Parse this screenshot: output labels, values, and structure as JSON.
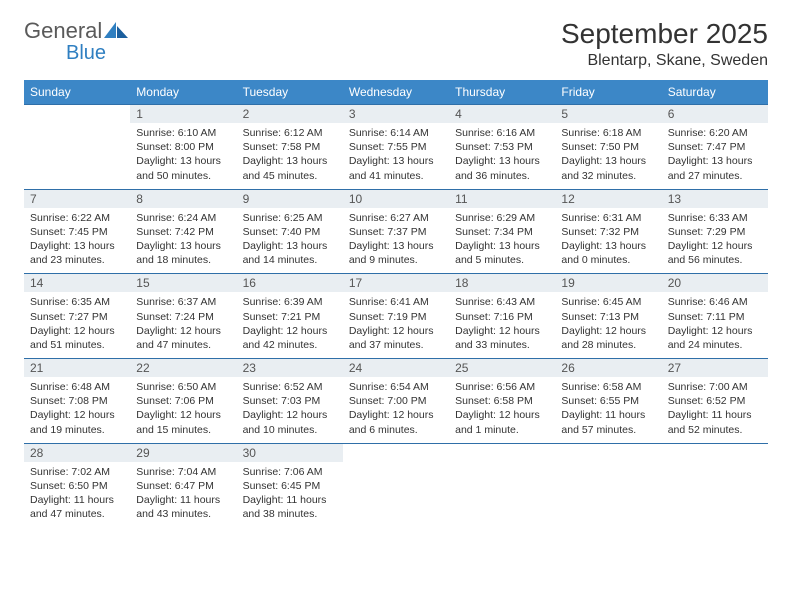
{
  "logo": {
    "word1": "General",
    "word2": "Blue"
  },
  "header": {
    "title": "September 2025",
    "location": "Blentarp, Skane, Sweden"
  },
  "colors": {
    "header_bg": "#3c87c7",
    "header_text": "#ffffff",
    "daynum_bg": "#e9eef2",
    "daynum_text": "#555555",
    "rule": "#2f6fa8",
    "body_text": "#333333",
    "logo_blue": "#2f7fc1"
  },
  "dows": [
    "Sunday",
    "Monday",
    "Tuesday",
    "Wednesday",
    "Thursday",
    "Friday",
    "Saturday"
  ],
  "weeks": [
    [
      null,
      {
        "n": "1",
        "sr": "6:10 AM",
        "ss": "8:00 PM",
        "dl": "13 hours and 50 minutes."
      },
      {
        "n": "2",
        "sr": "6:12 AM",
        "ss": "7:58 PM",
        "dl": "13 hours and 45 minutes."
      },
      {
        "n": "3",
        "sr": "6:14 AM",
        "ss": "7:55 PM",
        "dl": "13 hours and 41 minutes."
      },
      {
        "n": "4",
        "sr": "6:16 AM",
        "ss": "7:53 PM",
        "dl": "13 hours and 36 minutes."
      },
      {
        "n": "5",
        "sr": "6:18 AM",
        "ss": "7:50 PM",
        "dl": "13 hours and 32 minutes."
      },
      {
        "n": "6",
        "sr": "6:20 AM",
        "ss": "7:47 PM",
        "dl": "13 hours and 27 minutes."
      }
    ],
    [
      {
        "n": "7",
        "sr": "6:22 AM",
        "ss": "7:45 PM",
        "dl": "13 hours and 23 minutes."
      },
      {
        "n": "8",
        "sr": "6:24 AM",
        "ss": "7:42 PM",
        "dl": "13 hours and 18 minutes."
      },
      {
        "n": "9",
        "sr": "6:25 AM",
        "ss": "7:40 PM",
        "dl": "13 hours and 14 minutes."
      },
      {
        "n": "10",
        "sr": "6:27 AM",
        "ss": "7:37 PM",
        "dl": "13 hours and 9 minutes."
      },
      {
        "n": "11",
        "sr": "6:29 AM",
        "ss": "7:34 PM",
        "dl": "13 hours and 5 minutes."
      },
      {
        "n": "12",
        "sr": "6:31 AM",
        "ss": "7:32 PM",
        "dl": "13 hours and 0 minutes."
      },
      {
        "n": "13",
        "sr": "6:33 AM",
        "ss": "7:29 PM",
        "dl": "12 hours and 56 minutes."
      }
    ],
    [
      {
        "n": "14",
        "sr": "6:35 AM",
        "ss": "7:27 PM",
        "dl": "12 hours and 51 minutes."
      },
      {
        "n": "15",
        "sr": "6:37 AM",
        "ss": "7:24 PM",
        "dl": "12 hours and 47 minutes."
      },
      {
        "n": "16",
        "sr": "6:39 AM",
        "ss": "7:21 PM",
        "dl": "12 hours and 42 minutes."
      },
      {
        "n": "17",
        "sr": "6:41 AM",
        "ss": "7:19 PM",
        "dl": "12 hours and 37 minutes."
      },
      {
        "n": "18",
        "sr": "6:43 AM",
        "ss": "7:16 PM",
        "dl": "12 hours and 33 minutes."
      },
      {
        "n": "19",
        "sr": "6:45 AM",
        "ss": "7:13 PM",
        "dl": "12 hours and 28 minutes."
      },
      {
        "n": "20",
        "sr": "6:46 AM",
        "ss": "7:11 PM",
        "dl": "12 hours and 24 minutes."
      }
    ],
    [
      {
        "n": "21",
        "sr": "6:48 AM",
        "ss": "7:08 PM",
        "dl": "12 hours and 19 minutes."
      },
      {
        "n": "22",
        "sr": "6:50 AM",
        "ss": "7:06 PM",
        "dl": "12 hours and 15 minutes."
      },
      {
        "n": "23",
        "sr": "6:52 AM",
        "ss": "7:03 PM",
        "dl": "12 hours and 10 minutes."
      },
      {
        "n": "24",
        "sr": "6:54 AM",
        "ss": "7:00 PM",
        "dl": "12 hours and 6 minutes."
      },
      {
        "n": "25",
        "sr": "6:56 AM",
        "ss": "6:58 PM",
        "dl": "12 hours and 1 minute."
      },
      {
        "n": "26",
        "sr": "6:58 AM",
        "ss": "6:55 PM",
        "dl": "11 hours and 57 minutes."
      },
      {
        "n": "27",
        "sr": "7:00 AM",
        "ss": "6:52 PM",
        "dl": "11 hours and 52 minutes."
      }
    ],
    [
      {
        "n": "28",
        "sr": "7:02 AM",
        "ss": "6:50 PM",
        "dl": "11 hours and 47 minutes."
      },
      {
        "n": "29",
        "sr": "7:04 AM",
        "ss": "6:47 PM",
        "dl": "11 hours and 43 minutes."
      },
      {
        "n": "30",
        "sr": "7:06 AM",
        "ss": "6:45 PM",
        "dl": "11 hours and 38 minutes."
      },
      null,
      null,
      null,
      null
    ]
  ],
  "labels": {
    "sunrise": "Sunrise:",
    "sunset": "Sunset:",
    "daylight": "Daylight:"
  }
}
